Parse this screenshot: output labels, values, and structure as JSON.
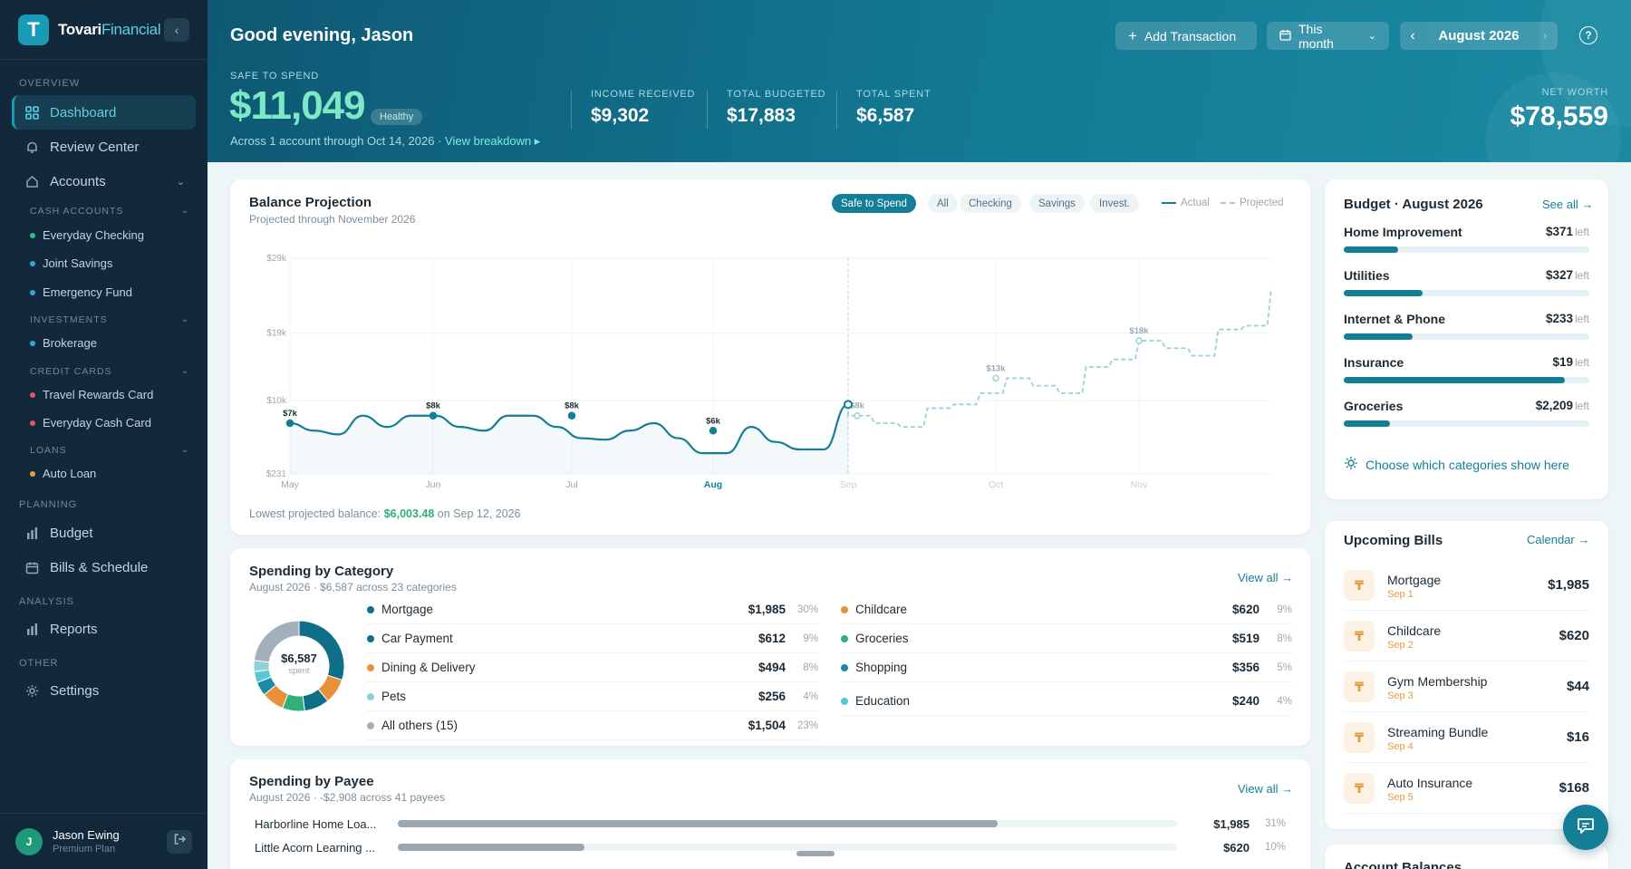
{
  "brand": {
    "name_a": "Tovari",
    "name_b": "Financial",
    "logo_letter": "T"
  },
  "sidebar": {
    "overview_label": "OVERVIEW",
    "dashboard": "Dashboard",
    "review_center": "Review Center",
    "accounts": "Accounts",
    "cash_label": "CASH ACCOUNTS",
    "cash": [
      {
        "name": "Everyday Checking",
        "color": "#2fbf8f"
      },
      {
        "name": "Joint Savings",
        "color": "#2fa8d8"
      },
      {
        "name": "Emergency Fund",
        "color": "#2fa8d8"
      }
    ],
    "invest_label": "INVESTMENTS",
    "invest": [
      {
        "name": "Brokerage",
        "color": "#2fa8d8"
      }
    ],
    "cc_label": "CREDIT CARDS",
    "cc": [
      {
        "name": "Travel Rewards Card",
        "color": "#e25a5a"
      },
      {
        "name": "Everyday Cash Card",
        "color": "#e25a5a"
      }
    ],
    "loans_label": "LOANS",
    "loans": [
      {
        "name": "Auto Loan",
        "color": "#e5a23c"
      }
    ],
    "planning_label": "PLANNING",
    "budget": "Budget",
    "bills": "Bills & Schedule",
    "analysis_label": "ANALYSIS",
    "reports": "Reports",
    "other_label": "OTHER",
    "settings": "Settings",
    "user": {
      "initial": "J",
      "name": "Jason Ewing",
      "plan": "Premium Plan"
    }
  },
  "header": {
    "greeting": "Good evening, Jason",
    "add_txn": "Add Transaction",
    "period": "This month",
    "month": "August 2026",
    "safe_label": "SAFE TO SPEND",
    "safe_value": "$11,049",
    "status": "Healthy",
    "note": "Across 1 account through Oct 14, 2026 · ",
    "note_link": "View breakdown ▸",
    "income_label": "INCOME RECEIVED",
    "income": "$9,302",
    "budgeted_label": "TOTAL BUDGETED",
    "budgeted": "$17,883",
    "spent_label": "TOTAL SPENT",
    "spent": "$6,587",
    "networth_label": "NET WORTH",
    "networth": "$78,559"
  },
  "projection": {
    "title": "Balance Projection",
    "subtitle": "Projected through November 2026",
    "chips": [
      "Safe to Spend",
      "All",
      "Checking",
      "Savings",
      "Invest."
    ],
    "legend_actual": "Actual",
    "legend_projected": "Projected",
    "lowest_prefix": "Lowest projected balance: ",
    "lowest_value": "$6,003.48",
    "lowest_suffix": " on Sep 12, 2026"
  },
  "chart_data": {
    "type": "line",
    "y_ticks": [
      "$29k",
      "$19k",
      "$10k",
      "$231"
    ],
    "x_ticks": [
      "May",
      "Jun",
      "Jul",
      "Aug",
      "Sep",
      "Oct",
      "Nov"
    ],
    "point_labels": [
      {
        "x": "May",
        "label": "$7k"
      },
      {
        "x": "Jun",
        "label": "$8k"
      },
      {
        "x": "Jul",
        "label": "$8k"
      },
      {
        "x": "Aug",
        "label": "$6k"
      },
      {
        "x": "Sep",
        "label": "$8k"
      },
      {
        "x": "Oct",
        "label": "$13k"
      },
      {
        "x": "Nov",
        "label": "$18k"
      }
    ],
    "series": [
      {
        "name": "Actual",
        "values": [
          7,
          6,
          5.5,
          8,
          6.5,
          8,
          8,
          6.5,
          6,
          8,
          8,
          6.5,
          5,
          4.8,
          6,
          7,
          5,
          3,
          3,
          6.5,
          4.5,
          3.5,
          3.5,
          9.5
        ]
      },
      {
        "name": "Projected",
        "values": [
          8,
          7,
          6.5,
          9,
          9.5,
          11,
          13,
          12,
          11,
          14.5,
          15.5,
          18,
          17,
          16,
          19.5,
          20,
          25
        ]
      }
    ]
  },
  "category": {
    "title": "Spending by Category",
    "subtitle": "August 2026 · $6,587 across 23 categories",
    "view_all": "View all →",
    "total": "$6,587",
    "total_label": "spent",
    "left": [
      {
        "name": "Mortgage",
        "amount": "$1,985",
        "pct": "30%",
        "color": "#0f6f86"
      },
      {
        "name": "Car Payment",
        "amount": "$612",
        "pct": "9%",
        "color": "#0f6f86"
      },
      {
        "name": "Dining & Delivery",
        "amount": "$494",
        "pct": "8%",
        "color": "#e8913a"
      },
      {
        "name": "Pets",
        "amount": "$256",
        "pct": "4%",
        "color": "#8ecfd8"
      },
      {
        "name": "All others (15)",
        "amount": "$1,504",
        "pct": "23%",
        "color": "#a4b0b9"
      }
    ],
    "right": [
      {
        "name": "Childcare",
        "amount": "$620",
        "pct": "9%",
        "color": "#e8913a"
      },
      {
        "name": "Groceries",
        "amount": "$519",
        "pct": "8%",
        "color": "#2fb07a"
      },
      {
        "name": "Shopping",
        "amount": "$356",
        "pct": "5%",
        "color": "#1b8aa6"
      },
      {
        "name": "Education",
        "amount": "$240",
        "pct": "4%",
        "color": "#5fc3d6"
      }
    ]
  },
  "payee": {
    "title": "Spending by Payee",
    "subtitle": "August 2026 · -$2,908 across 41 payees",
    "view_all": "View all →",
    "rows": [
      {
        "name": "Harborline Home Loa...",
        "amount": "$1,985",
        "pct": "31%",
        "fill": 0.77
      },
      {
        "name": "Little Acorn Learning ...",
        "amount": "$620",
        "pct": "10%",
        "fill": 0.24
      }
    ]
  },
  "budget": {
    "title": "Budget · August 2026",
    "see_all": "See all →",
    "left_word": "left",
    "rows": [
      {
        "name": "Home Improvement",
        "amount": "$371",
        "fill": 0.22
      },
      {
        "name": "Utilities",
        "amount": "$327",
        "fill": 0.32
      },
      {
        "name": "Internet & Phone",
        "amount": "$233",
        "fill": 0.28
      },
      {
        "name": "Insurance",
        "amount": "$19",
        "fill": 0.9
      },
      {
        "name": "Groceries",
        "amount": "$2,209",
        "fill": 0.19
      }
    ],
    "choose": "Choose which categories show here"
  },
  "bills": {
    "title": "Upcoming Bills",
    "calendar": "Calendar →",
    "rows": [
      {
        "name": "Mortgage",
        "date": "Sep 1",
        "amount": "$1,985"
      },
      {
        "name": "Childcare",
        "date": "Sep 2",
        "amount": "$620"
      },
      {
        "name": "Gym Membership",
        "date": "Sep 3",
        "amount": "$44"
      },
      {
        "name": "Streaming Bundle",
        "date": "Sep 4",
        "amount": "$16"
      },
      {
        "name": "Auto Insurance",
        "date": "Sep 5",
        "amount": "$168"
      }
    ]
  },
  "account_balances": {
    "title": "Account Balances"
  },
  "colors": {
    "primary": "#147e96",
    "sidebar": "#11293a",
    "positive": "#2fb07a",
    "warning": "#e59a3c"
  }
}
